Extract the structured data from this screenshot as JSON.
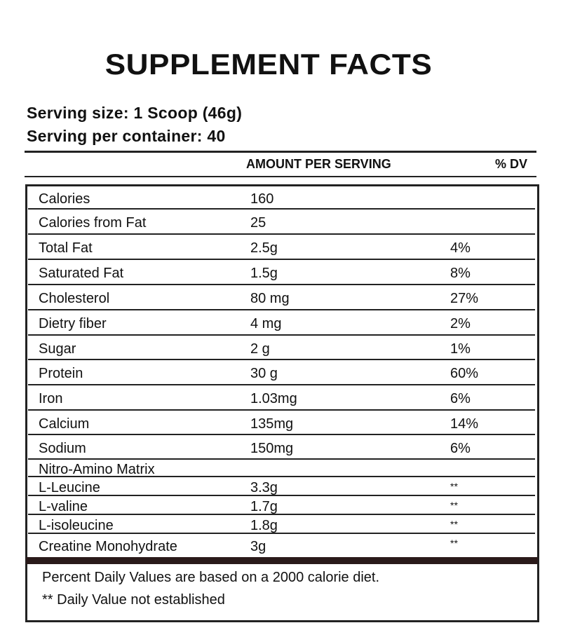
{
  "header": {
    "title": "SUPPLEMENT FACTS",
    "serving_size": "Serving size: 1 Scoop (46g)",
    "servings_per_container": "Serving per container: 40"
  },
  "table": {
    "columns": [
      "AMOUNT PER SERVING",
      "% DV"
    ],
    "rows": [
      [
        "Calories",
        "160"
      ],
      [
        "Calories from Fat",
        "25"
      ],
      [
        "Total Fat",
        "2.5g",
        "4%"
      ],
      [
        "Saturated Fat",
        "1.5g",
        "8%"
      ],
      [
        "Cholesterol",
        "80 mg",
        "27%"
      ],
      [
        "Dietry fiber",
        "4 mg",
        "2%"
      ],
      [
        "Sugar",
        "2 g",
        "1%"
      ],
      [
        "Protein",
        "30 g",
        "60%"
      ],
      [
        "Iron",
        "1.03mg",
        "6%"
      ],
      [
        "Calcium",
        "135mg",
        "14%"
      ],
      [
        "Sodium",
        "150mg",
        "6%"
      ],
      [
        "Nitro-Amino Matrix"
      ],
      [
        "L-Leucine",
        "3.3g",
        "**"
      ],
      [
        "L-valine",
        "1.7g",
        "**"
      ],
      [
        "L-isoleucine",
        "1.8g",
        "**"
      ],
      [
        "Creatine Monohydrate",
        "3g",
        "**"
      ]
    ]
  },
  "footer": {
    "note": "Percent Daily Values are based on a 2000 calorie diet.",
    "footnote": "** Daily Value not established"
  }
}
